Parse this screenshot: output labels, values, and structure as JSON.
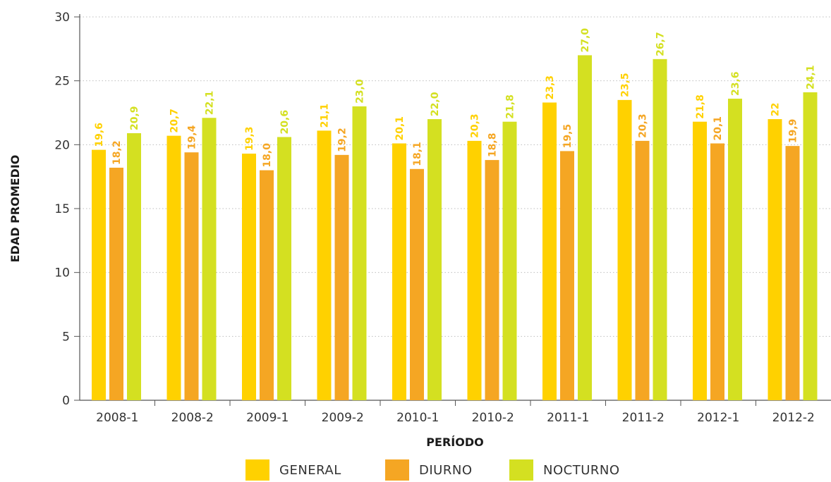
{
  "chart_data": {
    "type": "bar",
    "title": "",
    "xlabel": "PERÍODO",
    "ylabel": "EDAD PROMEDIO",
    "ylim": [
      0,
      30
    ],
    "yticks": [
      "0",
      "5",
      "10",
      "15",
      "20",
      "25",
      "30"
    ],
    "grid": true,
    "legend_position": "bottom",
    "categories": [
      "2008-1",
      "2008-2",
      "2009-1",
      "2009-2",
      "2010-1",
      "2010-2",
      "2011-1",
      "2011-2",
      "2012-1",
      "2012-2"
    ],
    "series": [
      {
        "name": "GENERAL",
        "color": "#FFD100",
        "values": [
          19.6,
          20.7,
          19.3,
          21.1,
          20.1,
          20.3,
          23.3,
          23.5,
          21.8,
          22
        ],
        "labels": [
          "19,6",
          "20,7",
          "19,3",
          "21,1",
          "20,1",
          "20,3",
          "23,3",
          "23,5",
          "21,8",
          "22"
        ]
      },
      {
        "name": "DIURNO",
        "color": "#F5A623",
        "values": [
          18.2,
          19.4,
          18.0,
          19.2,
          18.1,
          18.8,
          19.5,
          20.3,
          20.1,
          19.9
        ],
        "labels": [
          "18,2",
          "19,4",
          "18,0",
          "19,2",
          "18,1",
          "18,8",
          "19,5",
          "20,3",
          "20,1",
          "19,9"
        ]
      },
      {
        "name": "NOCTURNO",
        "color": "#D4E021",
        "values": [
          20.9,
          22.1,
          20.6,
          23.0,
          22.0,
          21.8,
          27.0,
          26.7,
          23.6,
          24.1
        ],
        "labels": [
          "20,9",
          "22,1",
          "20,6",
          "23,0",
          "22,0",
          "21,8",
          "27,0",
          "26,7",
          "23,6",
          "24,1"
        ]
      }
    ]
  }
}
